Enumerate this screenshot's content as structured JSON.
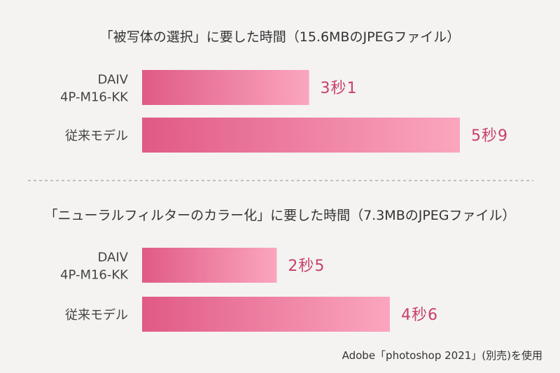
{
  "background": "#f4f3f2",
  "colors": {
    "bar_start": "#e05a86",
    "bar_end": "#fba6be",
    "value_text": "#c93f6b",
    "label_text": "#444444",
    "divider": "#b0b0b0"
  },
  "chart_data": [
    {
      "type": "bar",
      "orientation": "horizontal",
      "title": "「被写体の選択」に要した時間（15.6MBのJPEGファイル）",
      "categories": [
        [
          "DAIV",
          "4P-M16-KK"
        ],
        [
          "従来モデル"
        ]
      ],
      "values": [
        3.1,
        5.9
      ],
      "value_labels": [
        "3秒1",
        "5秒9"
      ],
      "unit": "秒",
      "xlim": [
        0,
        8.8
      ]
    },
    {
      "type": "bar",
      "orientation": "horizontal",
      "title": "「ニューラルフィルターのカラー化」に要した時間（7.3MBのJPEGファイル）",
      "categories": [
        [
          "DAIV",
          "4P-M16-KK"
        ],
        [
          "従来モデル"
        ]
      ],
      "values": [
        2.5,
        4.6
      ],
      "value_labels": [
        "2秒5",
        "4秒6"
      ],
      "unit": "秒",
      "xlim": [
        0,
        8.8
      ]
    }
  ],
  "footnote": "Adobe「photoshop 2021」(別売)を使用"
}
